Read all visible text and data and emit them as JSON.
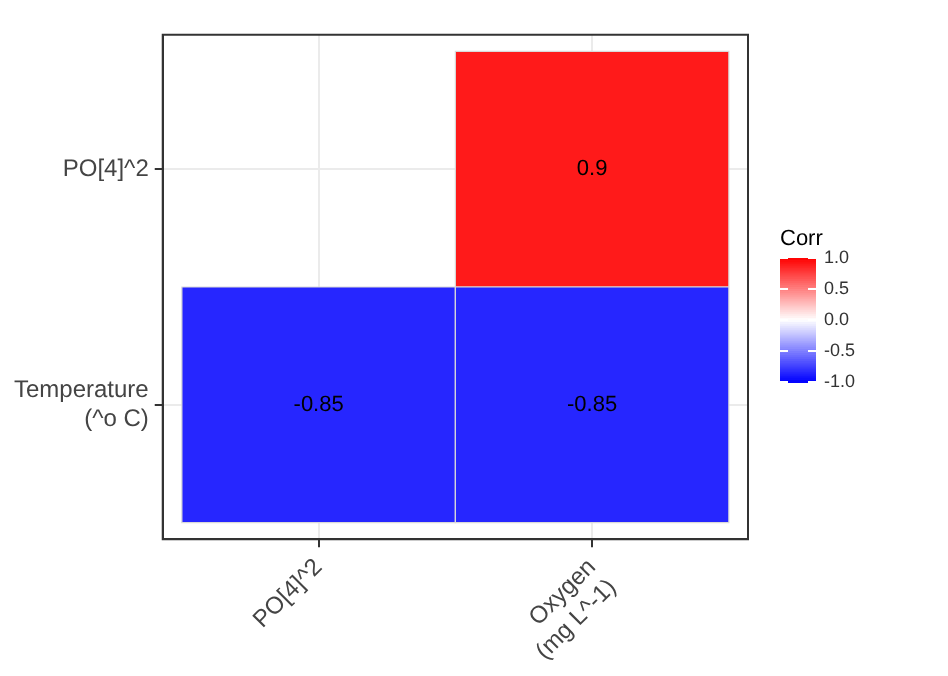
{
  "chart_data": {
    "type": "heatmap",
    "categories": [
      "PO[4]^2",
      "Oxygen\n(mg L^-1)"
    ],
    "y_categories": [
      "PO[4]^2",
      "Temperature\n(^o C)"
    ],
    "cells": [
      [
        null,
        0.9
      ],
      [
        -0.85,
        -0.85
      ]
    ],
    "data_labels": true,
    "legend_title": "Corr",
    "colors": [
      "#0000ff",
      "#ffffff",
      "#ff0000"
    ],
    "clim": [
      -1,
      1
    ],
    "cticks": [
      {
        "value": -1,
        "label": "-1.0"
      },
      {
        "value": -0.5,
        "label": "-0.5"
      },
      {
        "value": 0,
        "label": "0.0"
      },
      {
        "value": 0.5,
        "label": "0.5"
      },
      {
        "value": 1,
        "label": "1.0"
      }
    ],
    "grid": true
  }
}
